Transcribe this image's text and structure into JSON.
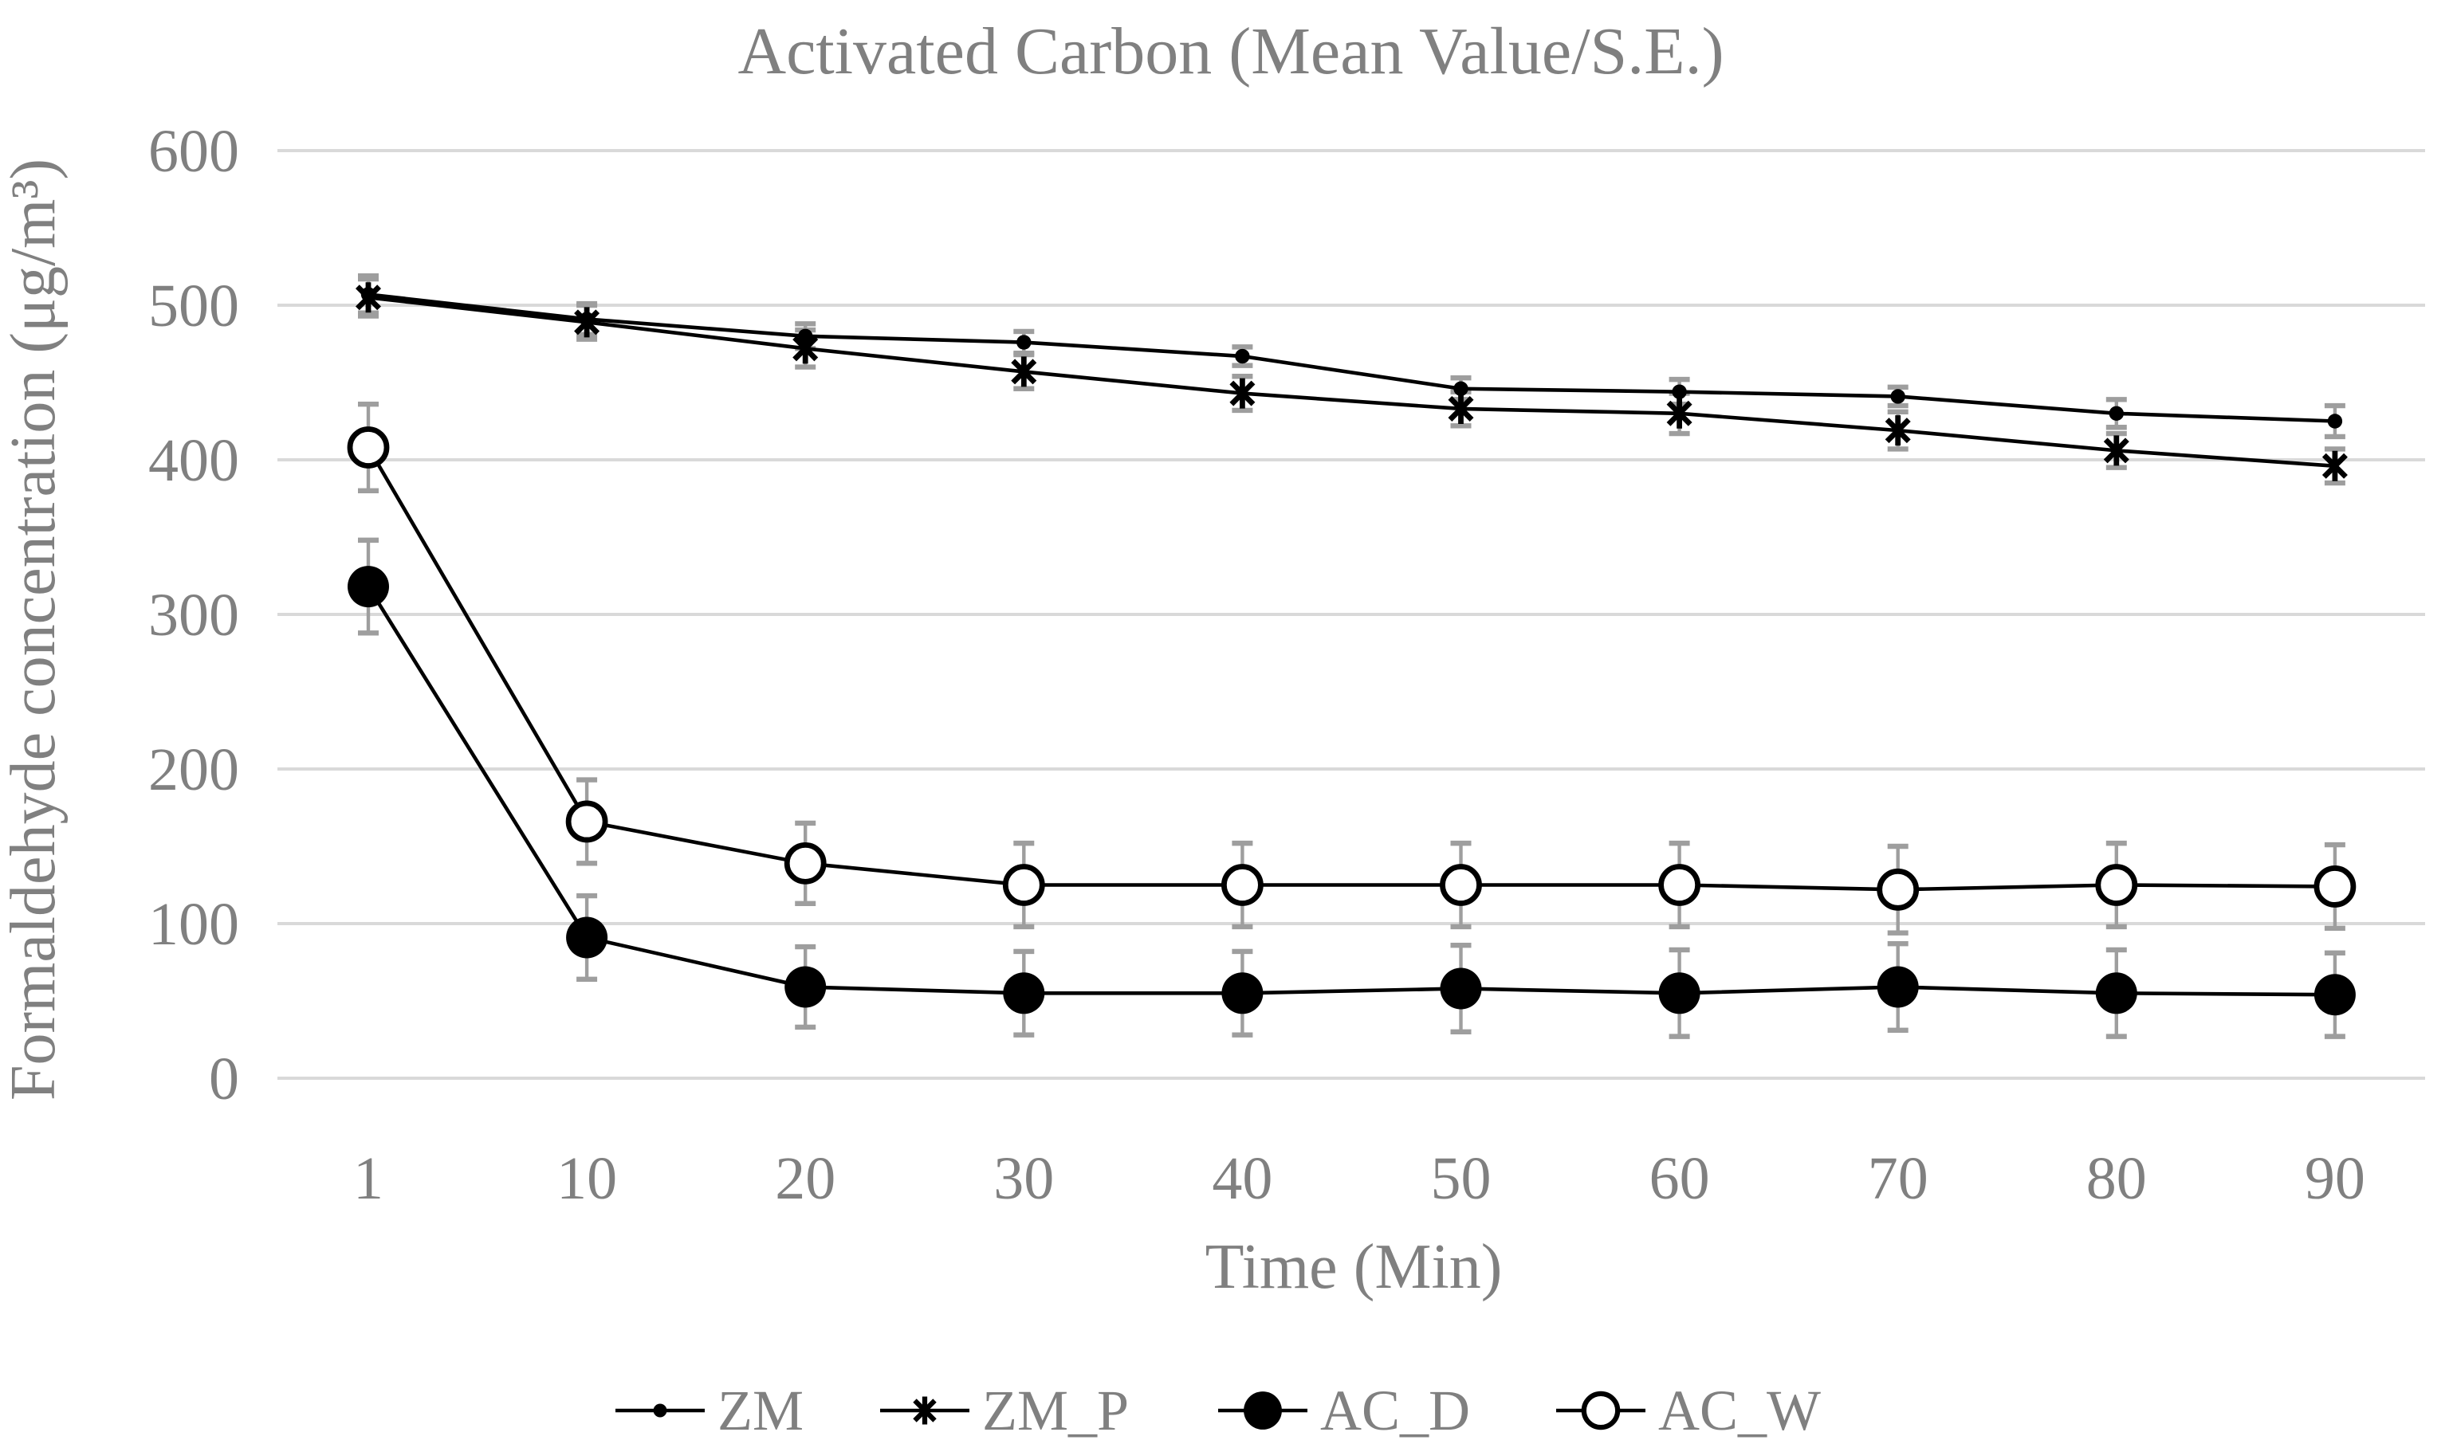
{
  "chart_data": {
    "type": "line",
    "title": "Activated Carbon (Mean Value/S.E.)",
    "xlabel": "Time (Min)",
    "ylabel": "Formaldehyde concentration (μg/m³)",
    "categories": [
      1,
      10,
      20,
      30,
      40,
      50,
      60,
      70,
      80,
      90
    ],
    "ylim": [
      0,
      600
    ],
    "yticks": [
      0,
      100,
      200,
      300,
      400,
      500,
      600
    ],
    "grid": "horizontal",
    "legend_position": "bottom",
    "series": [
      {
        "name": "ZM",
        "marker": "dot",
        "values": [
          507,
          491,
          480,
          476,
          467,
          446,
          444,
          441,
          430,
          425
        ],
        "errors": [
          12,
          10,
          8,
          7,
          6,
          7,
          8,
          6,
          9,
          10
        ]
      },
      {
        "name": "ZM_P",
        "marker": "asterisk",
        "values": [
          505,
          489,
          472,
          457,
          443,
          433,
          430,
          419,
          406,
          396
        ],
        "errors": [
          12,
          11,
          12,
          11,
          11,
          11,
          13,
          12,
          11,
          11
        ]
      },
      {
        "name": "AC_D",
        "marker": "filled-circle",
        "values": [
          318,
          91,
          59,
          55,
          55,
          58,
          55,
          59,
          55,
          54
        ],
        "errors": [
          30,
          27,
          26,
          27,
          27,
          28,
          28,
          28,
          28,
          27
        ]
      },
      {
        "name": "AC_W",
        "marker": "open-circle",
        "values": [
          408,
          166,
          139,
          125,
          125,
          125,
          125,
          122,
          125,
          124
        ],
        "errors": [
          28,
          27,
          26,
          27,
          27,
          27,
          27,
          28,
          27,
          27
        ]
      }
    ],
    "colors": {
      "series_color": "#000000",
      "text_color": "#808080",
      "gridline_color": "#d9d9d9",
      "error_bar_color": "#9e9e9e",
      "background": "#ffffff"
    }
  }
}
